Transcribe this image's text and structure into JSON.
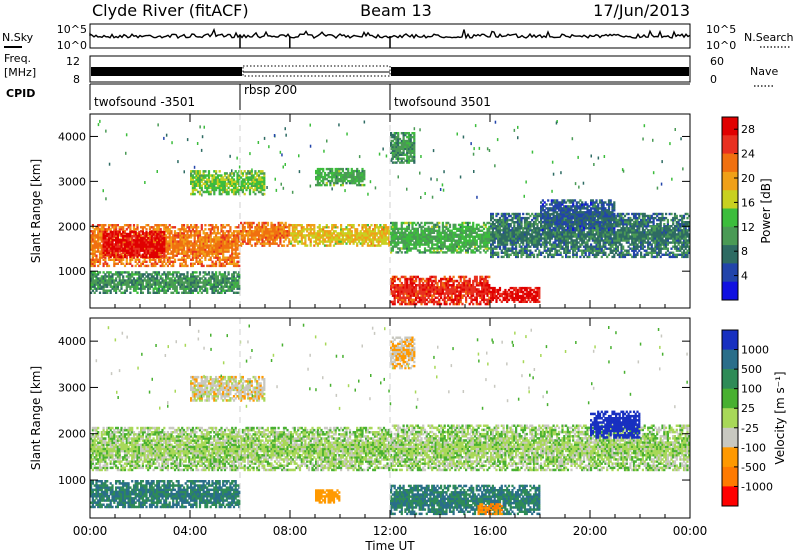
{
  "header": {
    "station": "Clyde River (fitACF)",
    "beam": "Beam 13",
    "date": "17/Jun/2013"
  },
  "status_panels": {
    "nsky_label": "N.Sky",
    "nsearch_label": "N.Search",
    "nsky_ticks": [
      "10^5",
      "10^0"
    ],
    "nsearch_ticks": [
      "10^5",
      "10^0"
    ],
    "freq_label_1": "Freq.",
    "freq_label_2": "[MHz]",
    "freq_ticks": [
      "12",
      "8"
    ],
    "nave_label": "Nave",
    "nave_ticks": [
      "60",
      "0"
    ],
    "cpid_label": "CPID",
    "cpid_segments": [
      {
        "label": "twofsound -3501",
        "start_hour": 0,
        "end_hour": 6
      },
      {
        "label": "rbsp 200",
        "start_hour": 6,
        "end_hour": 12
      },
      {
        "label": "twofsound 3501",
        "start_hour": 12,
        "end_hour": 24
      }
    ]
  },
  "colors": {
    "power_scale": [
      "#1010e0",
      "#2244aa",
      "#2e6b63",
      "#4a9a55",
      "#3cbd3c",
      "#c8d020",
      "#f0a018",
      "#f07010",
      "#e83020",
      "#e00000"
    ],
    "velocity_scale": [
      "#ff0000",
      "#ff7a00",
      "#ff9900",
      "#c8c8c0",
      "#a8d858",
      "#48b030",
      "#2e8b57",
      "#2a6e8a",
      "#1830c0"
    ]
  },
  "chart_data": [
    {
      "type": "heatmap",
      "name": "power",
      "xlabel": "Time UT",
      "ylabel": "Slant Range [km]",
      "xlim": [
        0,
        24
      ],
      "ylim": [
        180,
        4500
      ],
      "x_ticks": [
        "00:00",
        "04:00",
        "08:00",
        "12:00",
        "16:00",
        "20:00",
        "00:00"
      ],
      "y_ticks": [
        "1000",
        "2000",
        "3000",
        "4000"
      ],
      "colorbar": {
        "label": "Power [dB]",
        "ticks": [
          "4",
          "8",
          "12",
          "16",
          "20",
          "24",
          "28"
        ],
        "range": [
          0,
          30
        ]
      },
      "bands": [
        {
          "t0": 0,
          "t1": 6,
          "r0": 1100,
          "r1": 2050,
          "level": 22
        },
        {
          "t0": 0.5,
          "t1": 3,
          "r0": 1300,
          "r1": 1900,
          "level": 28
        },
        {
          "t0": 6,
          "t1": 8,
          "r0": 1550,
          "r1": 2100,
          "level": 22
        },
        {
          "t0": 8,
          "t1": 12,
          "r0": 1550,
          "r1": 2050,
          "level": 18
        },
        {
          "t0": 12,
          "t1": 16,
          "r0": 1400,
          "r1": 2100,
          "level": 12
        },
        {
          "t0": 16,
          "t1": 24,
          "r0": 1300,
          "r1": 2300,
          "level": 8
        },
        {
          "t0": 12,
          "t1": 16,
          "r0": 250,
          "r1": 900,
          "level": 26
        },
        {
          "t0": 16,
          "t1": 18,
          "r0": 300,
          "r1": 650,
          "level": 28
        },
        {
          "t0": 0,
          "t1": 6,
          "r0": 500,
          "r1": 1000,
          "level": 10
        },
        {
          "t0": 4,
          "t1": 7,
          "r0": 2700,
          "r1": 3250,
          "level": 14
        },
        {
          "t0": 9,
          "t1": 11,
          "r0": 2900,
          "r1": 3300,
          "level": 12
        },
        {
          "t0": 12,
          "t1": 13,
          "r0": 3400,
          "r1": 4100,
          "level": 10
        },
        {
          "t0": 18,
          "t1": 21,
          "r0": 1900,
          "r1": 2600,
          "level": 6
        }
      ]
    },
    {
      "type": "heatmap",
      "name": "velocity",
      "xlabel": "Time UT",
      "ylabel": "Slant Range [km]",
      "xlim": [
        0,
        24
      ],
      "ylim": [
        180,
        4500
      ],
      "x_ticks": [
        "00:00",
        "04:00",
        "08:00",
        "12:00",
        "16:00",
        "20:00",
        "00:00"
      ],
      "y_ticks": [
        "1000",
        "2000",
        "3000",
        "4000"
      ],
      "colorbar": {
        "label": "Velocity [m s⁻¹]",
        "ticks": [
          "1000",
          "500",
          "100",
          "25",
          "-25",
          "-100",
          "-500",
          "-1000"
        ]
      },
      "bands": [
        {
          "t0": 0,
          "t1": 12,
          "r0": 1200,
          "r1": 2150,
          "v": 0
        },
        {
          "t0": 12,
          "t1": 24,
          "r0": 1200,
          "r1": 2200,
          "v": 0
        },
        {
          "t0": 0,
          "t1": 6,
          "r0": 400,
          "r1": 1000,
          "v": 300
        },
        {
          "t0": 12,
          "t1": 18,
          "r0": 250,
          "r1": 900,
          "v": 300
        },
        {
          "t0": 9,
          "t1": 10,
          "r0": 500,
          "r1": 800,
          "v": -300
        },
        {
          "t0": 15.5,
          "t1": 16.5,
          "r0": 250,
          "r1": 500,
          "v": -500
        },
        {
          "t0": 20,
          "t1": 22,
          "r0": 1900,
          "r1": 2500,
          "v": 700
        },
        {
          "t0": 4,
          "t1": 7,
          "r0": 2700,
          "r1": 3250,
          "v": -60
        },
        {
          "t0": 12,
          "t1": 13,
          "r0": 3400,
          "r1": 4100,
          "v": -100
        }
      ]
    }
  ]
}
